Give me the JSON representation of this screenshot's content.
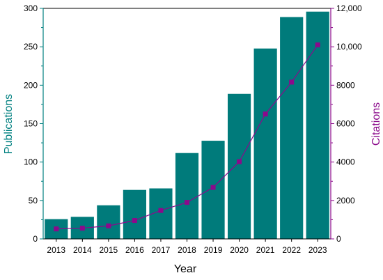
{
  "chart_data": {
    "type": "bar",
    "xlabel": "Year",
    "categories": [
      "2013",
      "2014",
      "2015",
      "2016",
      "2017",
      "2018",
      "2019",
      "2020",
      "2021",
      "2022",
      "2023"
    ],
    "series": [
      {
        "name": "Publications",
        "type": "bar",
        "axis": "left",
        "color": "#007b7b",
        "values": [
          26,
          29,
          44,
          64,
          66,
          112,
          128,
          189,
          248,
          289,
          296
        ]
      },
      {
        "name": "Citations",
        "type": "line",
        "axis": "right",
        "color": "#8b0a8b",
        "values": [
          520,
          560,
          680,
          960,
          1480,
          1900,
          2680,
          4020,
          6500,
          8160,
          10100
        ]
      }
    ],
    "y_left": {
      "label": "Publications",
      "color": "#008080",
      "range": [
        0,
        300
      ],
      "ticks": [
        "0",
        "50",
        "100",
        "150",
        "200",
        "250",
        "300"
      ]
    },
    "y_right": {
      "label": "Citations",
      "color": "#8b0a8b",
      "range": [
        0,
        12000
      ],
      "ticks": [
        "0",
        "2000",
        "4000",
        "6000",
        "8000",
        "10,000",
        "12,000"
      ]
    },
    "grid": false,
    "legend": "none"
  }
}
